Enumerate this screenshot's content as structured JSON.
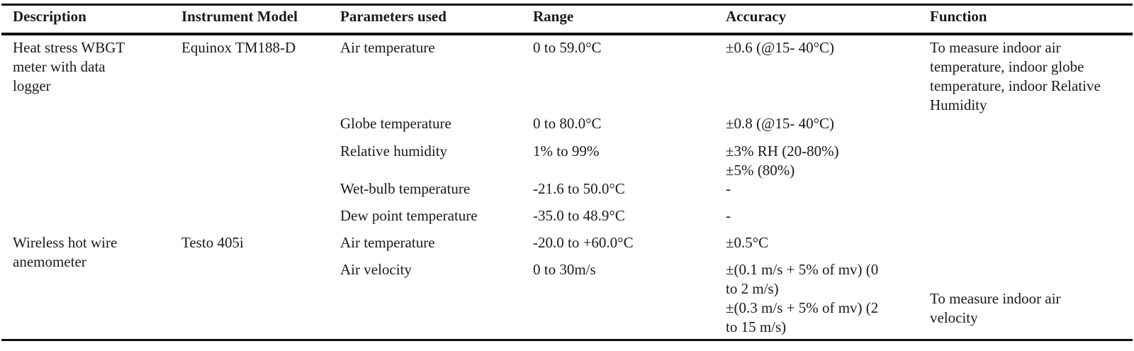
{
  "table": {
    "headers": {
      "description": "Description",
      "instrument_model": "Instrument Model",
      "parameters_used": "Parameters used",
      "range": "Range",
      "accuracy": "Accuracy",
      "function": "Function"
    },
    "instrument1": {
      "description": "Heat stress WBGT\nmeter with data\nlogger",
      "model": "Equinox TM188-D",
      "function": "To measure indoor air\ntemperature, indoor globe\ntemperature, indoor Relative\nHumidity",
      "rows": [
        {
          "parameter": "Air temperature",
          "range": "0 to 59.0°C",
          "accuracy": "±0.6 (@15- 40°C)"
        },
        {
          "parameter": "Globe temperature",
          "range": "0 to 80.0°C",
          "accuracy": "±0.8 (@15- 40°C)"
        },
        {
          "parameter": "Relative humidity",
          "range": "1% to 99%",
          "accuracy": "±3% RH (20-80%)\n±5% (80%)"
        },
        {
          "parameter": "Wet-bulb temperature",
          "range": "-21.6 to 50.0°C",
          "accuracy": "-"
        },
        {
          "parameter": "Dew point temperature",
          "range": "-35.0 to 48.9°C",
          "accuracy": "-"
        }
      ]
    },
    "instrument2": {
      "description": "Wireless hot wire\nanemometer",
      "model": "Testo 405i",
      "function": "To measure indoor air\nvelocity",
      "rows": [
        {
          "parameter": "Air temperature",
          "range": "-20.0 to +60.0°C",
          "accuracy": "±0.5°C"
        },
        {
          "parameter": "Air velocity",
          "range": "0 to 30m/s",
          "accuracy": "±(0.1 m/s + 5% of mv) (0\nto 2 m/s)\n±(0.3 m/s + 5% of mv) (2\nto 15 m/s)"
        }
      ]
    }
  }
}
